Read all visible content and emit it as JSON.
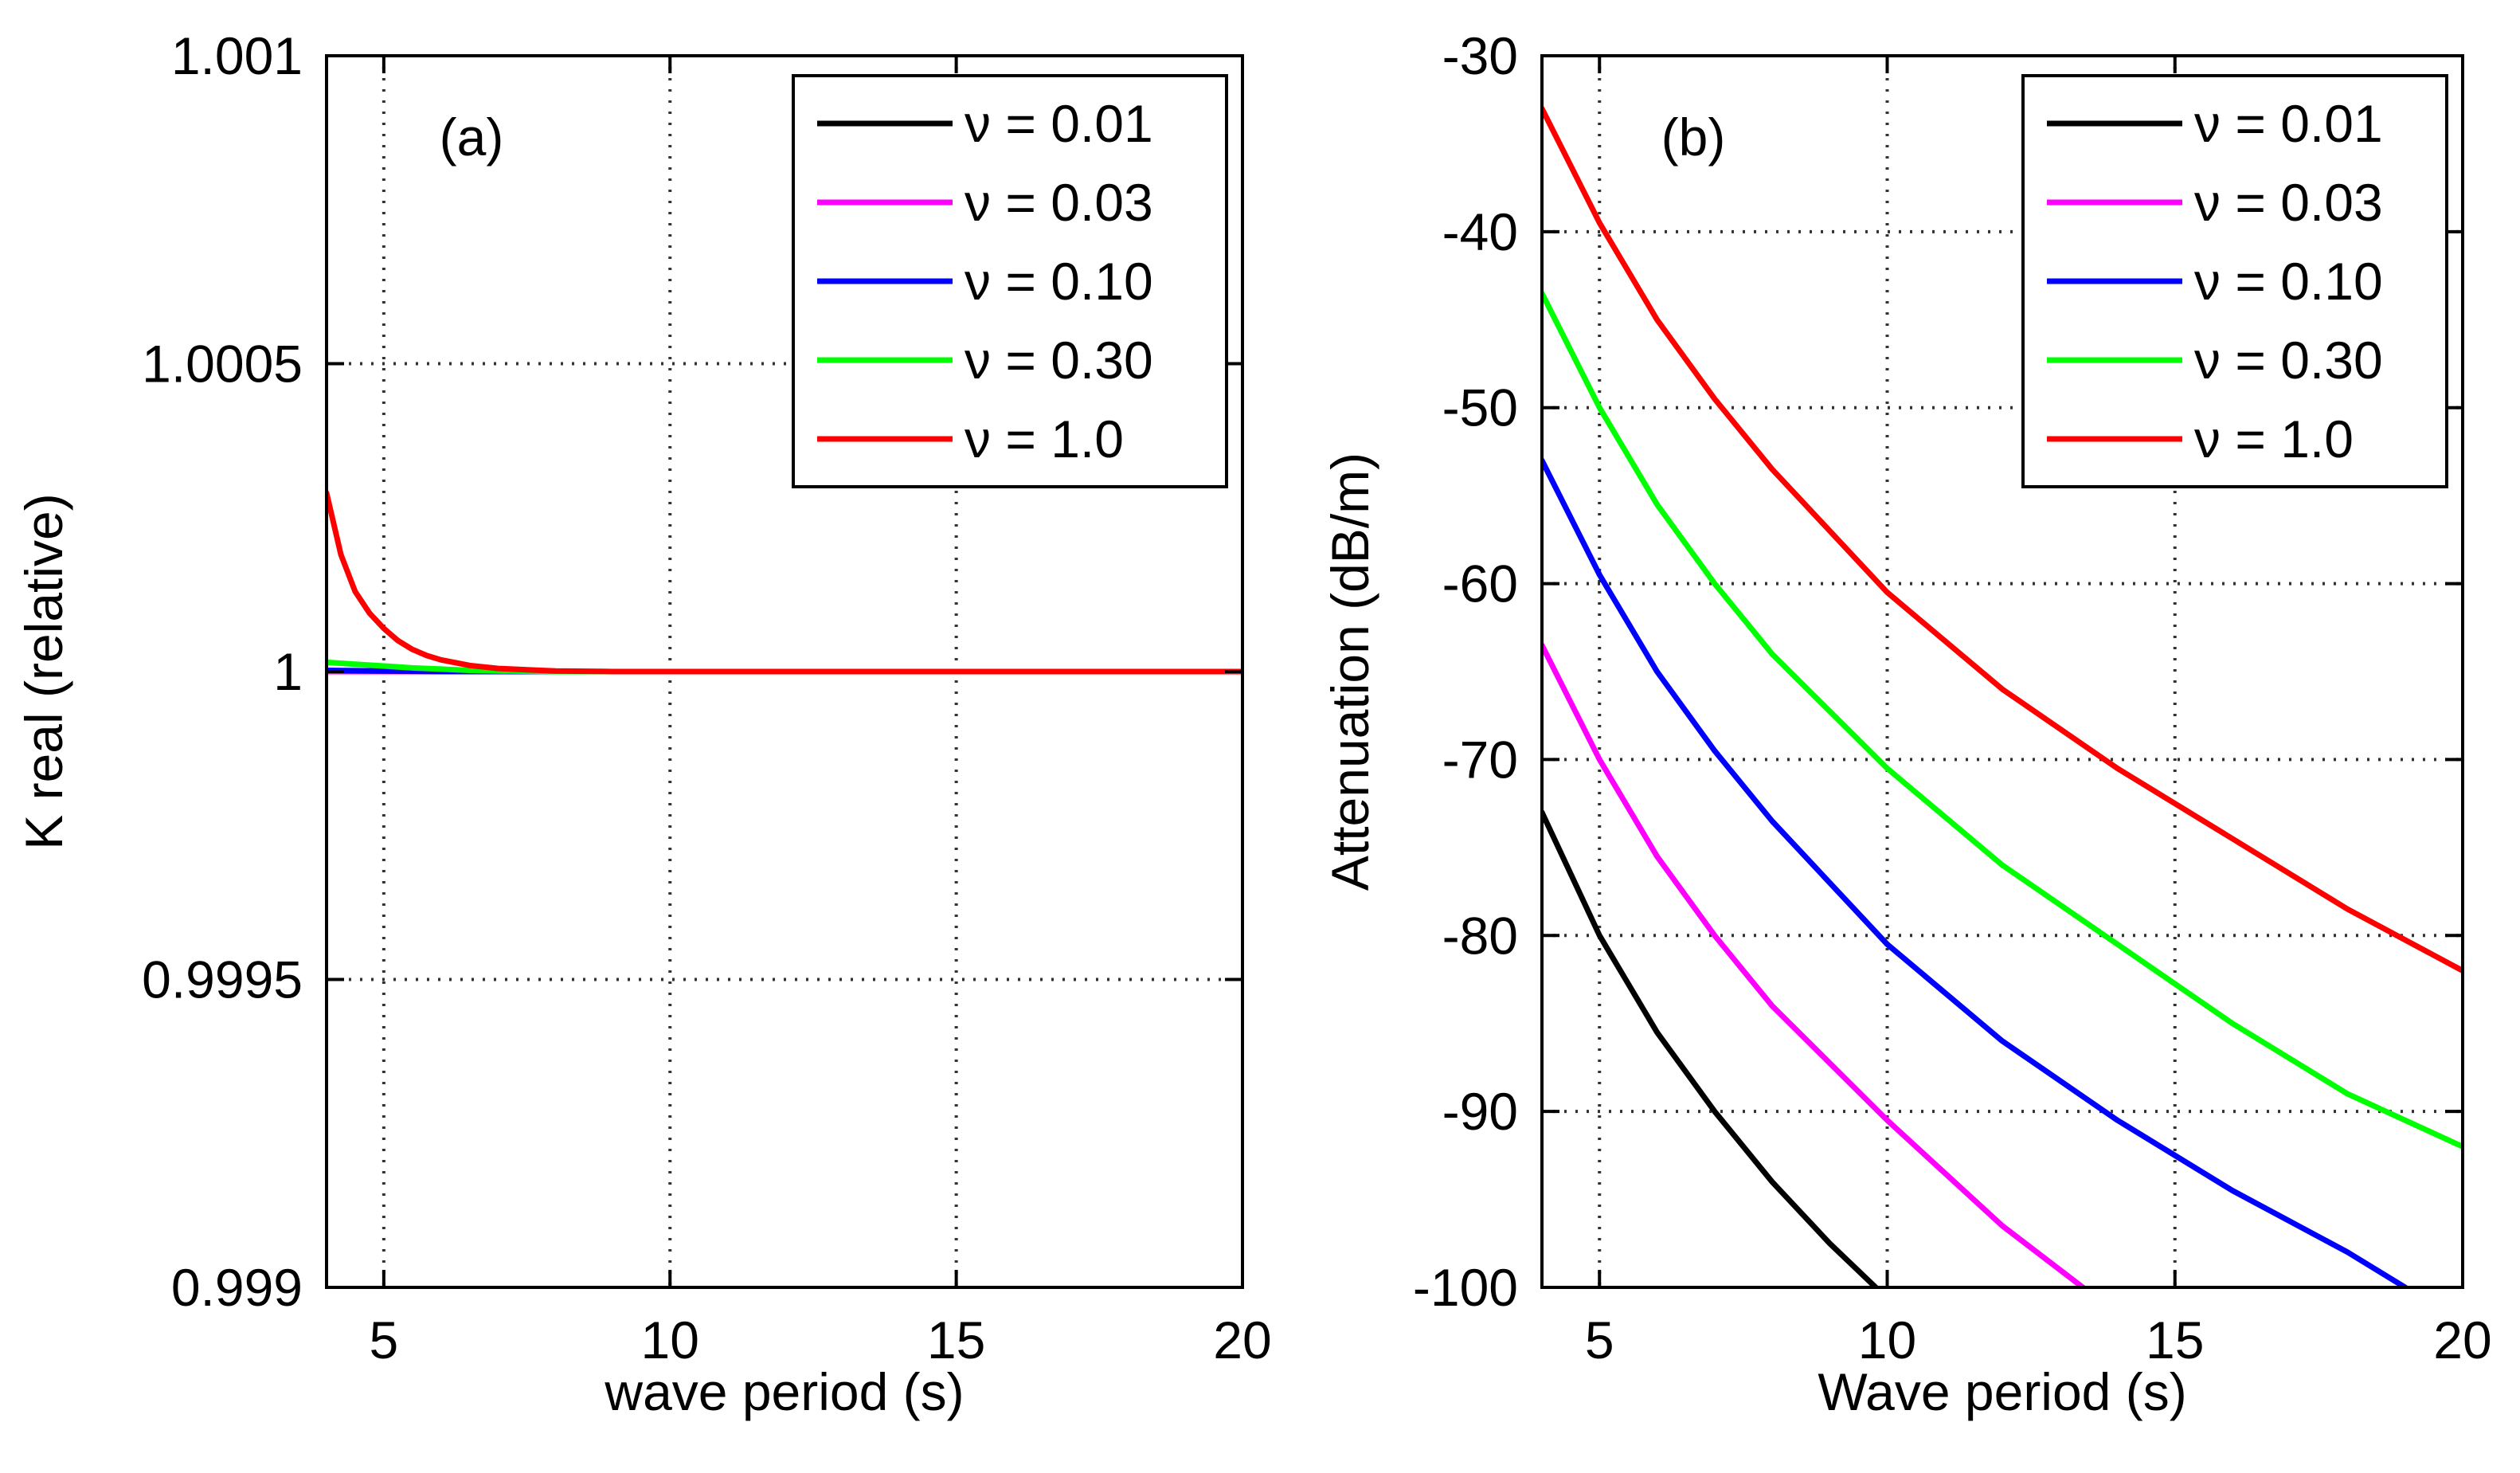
{
  "chart_data": [
    {
      "type": "line",
      "panel_label": "(a)",
      "xlabel": "wave period (s)",
      "ylabel": "K real (relative)",
      "xlim": [
        4,
        20
      ],
      "ylim": [
        0.999,
        1.001
      ],
      "xticks": [
        5,
        10,
        15,
        20
      ],
      "xtick_labels": [
        "5",
        "10",
        "15",
        "20"
      ],
      "yticks": [
        0.999,
        0.9995,
        1,
        1.0005,
        1.001
      ],
      "ytick_labels": [
        "0.999",
        "0.9995",
        "1",
        "1.0005",
        "1.001"
      ],
      "grid": true,
      "legend_position": "top-right",
      "series": [
        {
          "name": "ν = 0.01",
          "color": "#000000",
          "x": [
            4,
            5,
            6,
            7,
            8,
            10,
            12,
            14,
            16,
            18,
            20
          ],
          "y": [
            1.0,
            1.0,
            1.0,
            1.0,
            1.0,
            1.0,
            1.0,
            1.0,
            1.0,
            1.0,
            1.0
          ]
        },
        {
          "name": "ν = 0.03",
          "color": "#ff00ff",
          "x": [
            4,
            5,
            6,
            7,
            8,
            10,
            12,
            14,
            16,
            18,
            20
          ],
          "y": [
            1.0,
            1.0,
            1.0,
            1.0,
            1.0,
            1.0,
            1.0,
            1.0,
            1.0,
            1.0,
            1.0
          ]
        },
        {
          "name": "ν = 0.10",
          "color": "#0000ff",
          "x": [
            4,
            5,
            6,
            7,
            8,
            10,
            12,
            14,
            16,
            18,
            20
          ],
          "y": [
            1.000002,
            1.000001,
            1.0,
            1.0,
            1.0,
            1.0,
            1.0,
            1.0,
            1.0,
            1.0,
            1.0
          ]
        },
        {
          "name": "ν = 0.30",
          "color": "#00ff00",
          "x": [
            4,
            4.5,
            5,
            5.5,
            6,
            6.5,
            7,
            8,
            10,
            12,
            14,
            16,
            18,
            20
          ],
          "y": [
            1.000015,
            1.000012,
            1.000009,
            1.000006,
            1.000004,
            1.000002,
            1.000001,
            1.0,
            1.0,
            1.0,
            1.0,
            1.0,
            1.0,
            1.0
          ]
        },
        {
          "name": "ν = 1.0",
          "color": "#ff0000",
          "x": [
            4,
            4.25,
            4.5,
            4.75,
            5,
            5.25,
            5.5,
            5.75,
            6,
            6.5,
            7,
            7.5,
            8,
            9,
            10,
            12,
            14,
            16,
            18,
            20
          ],
          "y": [
            1.00029,
            1.00019,
            1.00013,
            1.000095,
            1.00007,
            1.00005,
            1.000036,
            1.000026,
            1.000019,
            1.00001,
            1.000005,
            1.000003,
            1.000001,
            1.0,
            1.0,
            1.0,
            1.0,
            1.0,
            1.0,
            1.0
          ]
        }
      ]
    },
    {
      "type": "line",
      "panel_label": "(b)",
      "xlabel": "Wave period (s)",
      "ylabel": "Attenuation (dB/m)",
      "xlim": [
        4,
        20
      ],
      "ylim": [
        -100,
        -30
      ],
      "xticks": [
        5,
        10,
        15,
        20
      ],
      "xtick_labels": [
        "5",
        "10",
        "15",
        "20"
      ],
      "yticks": [
        -100,
        -90,
        -80,
        -70,
        -60,
        -50,
        -40,
        -30
      ],
      "ytick_labels": [
        "-100",
        "-90",
        "-80",
        "-70",
        "-60",
        "-50",
        "-40",
        "-30"
      ],
      "grid": true,
      "legend_position": "top-right",
      "series": [
        {
          "name": "ν = 0.01",
          "color": "#000000",
          "x": [
            4,
            5,
            6,
            7,
            8,
            9,
            9.8
          ],
          "y": [
            -73,
            -80,
            -85.5,
            -90,
            -94,
            -97.5,
            -100
          ]
        },
        {
          "name": "ν = 0.03",
          "color": "#ff00ff",
          "x": [
            4,
            5,
            6,
            7,
            8,
            10,
            12,
            13.4
          ],
          "y": [
            -63.5,
            -70,
            -75.5,
            -80,
            -84,
            -90.5,
            -96.5,
            -100
          ]
        },
        {
          "name": "ν = 0.10",
          "color": "#0000ff",
          "x": [
            4,
            5,
            6,
            7,
            8,
            10,
            12,
            14,
            16,
            18,
            19
          ],
          "y": [
            -53,
            -59.5,
            -65,
            -69.5,
            -73.5,
            -80.5,
            -86,
            -90.5,
            -94.5,
            -98,
            -100
          ]
        },
        {
          "name": "ν = 0.30",
          "color": "#00ff00",
          "x": [
            4,
            5,
            6,
            7,
            8,
            10,
            12,
            14,
            16,
            18,
            20
          ],
          "y": [
            -43.5,
            -50,
            -55.5,
            -60,
            -64,
            -70.5,
            -76,
            -80.5,
            -85,
            -89,
            -92
          ]
        },
        {
          "name": "ν = 1.0",
          "color": "#ff0000",
          "x": [
            4,
            5,
            6,
            7,
            8,
            10,
            12,
            14,
            16,
            18,
            20
          ],
          "y": [
            -33,
            -39.5,
            -45,
            -49.5,
            -53.5,
            -60.5,
            -66,
            -70.5,
            -74.5,
            -78.5,
            -82
          ]
        }
      ]
    }
  ]
}
